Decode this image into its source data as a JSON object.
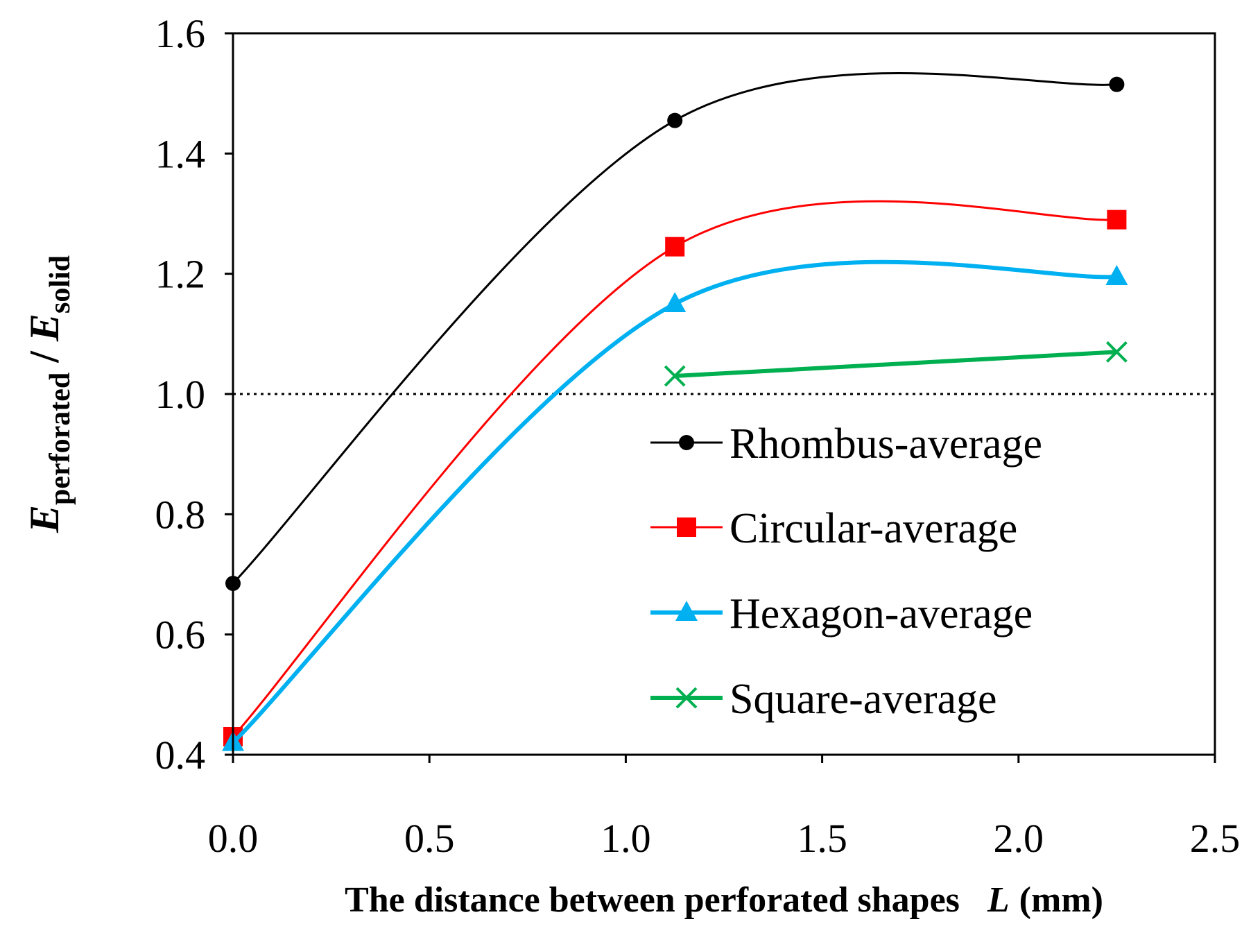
{
  "chart_data": {
    "type": "line",
    "title": "",
    "xlabel": "The distance between perforated shapes",
    "xlabel_symbol": "L",
    "xlabel_unit": "(mm)",
    "ylabel_symbol": "E",
    "ylabel_sub_num": "perforated",
    "ylabel_sep": "/",
    "ylabel_sub_den": "solid",
    "xlim": [
      0,
      2.5
    ],
    "ylim": [
      0.4,
      1.6
    ],
    "xticks": [
      "0.0",
      "0.5",
      "1.0",
      "1.5",
      "2.0",
      "2.5"
    ],
    "yticks": [
      "0.4",
      "0.6",
      "0.8",
      "1.0",
      "1.2",
      "1.4",
      "1.6"
    ],
    "reference_line": 1.0,
    "legend_position": "right",
    "series": [
      {
        "name": "Rhombus-average",
        "color": "#000000",
        "marker": "circle",
        "smooth": true,
        "x": [
          0.0,
          1.125,
          2.25
        ],
        "y": [
          0.685,
          1.455,
          1.515
        ]
      },
      {
        "name": "Circular-average",
        "color": "#ff0000",
        "marker": "square",
        "smooth": true,
        "x": [
          0.0,
          1.125,
          2.25
        ],
        "y": [
          0.43,
          1.245,
          1.29
        ]
      },
      {
        "name": "Hexagon-average",
        "color": "#00b0f0",
        "marker": "triangle",
        "smooth": true,
        "x": [
          0.0,
          1.125,
          2.25
        ],
        "y": [
          0.42,
          1.15,
          1.195
        ]
      },
      {
        "name": "Square-average",
        "color": "#00b050",
        "marker": "x",
        "smooth": false,
        "x": [
          1.125,
          2.25
        ],
        "y": [
          1.03,
          1.07
        ]
      }
    ]
  }
}
